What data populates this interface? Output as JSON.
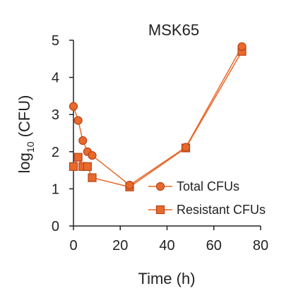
{
  "chart_data": {
    "type": "line",
    "title": "MSK65",
    "xlabel": "Time (h)",
    "ylabel_main": "log",
    "ylabel_sub": "10",
    "ylabel_tail": " (CFU)",
    "xlim": [
      0,
      80
    ],
    "ylim": [
      0,
      5
    ],
    "x_ticks": [
      0,
      20,
      40,
      60,
      80
    ],
    "y_ticks": [
      0,
      1,
      2,
      3,
      4,
      5
    ],
    "grid": false,
    "legend_position": "bottom-right",
    "series": [
      {
        "name": "Total CFUs",
        "marker": "circle",
        "color": "#E8692A",
        "x": [
          0,
          2,
          4,
          6,
          8,
          24,
          48,
          72
        ],
        "y": [
          3.22,
          2.84,
          2.3,
          2.0,
          1.9,
          1.1,
          2.12,
          4.83
        ]
      },
      {
        "name": "Resistant CFUs",
        "marker": "square",
        "color": "#E8692A",
        "x": [
          0,
          2,
          4,
          6,
          8,
          24,
          48,
          72
        ],
        "y": [
          1.6,
          1.85,
          1.6,
          1.6,
          1.3,
          1.05,
          2.1,
          4.7
        ]
      }
    ]
  }
}
